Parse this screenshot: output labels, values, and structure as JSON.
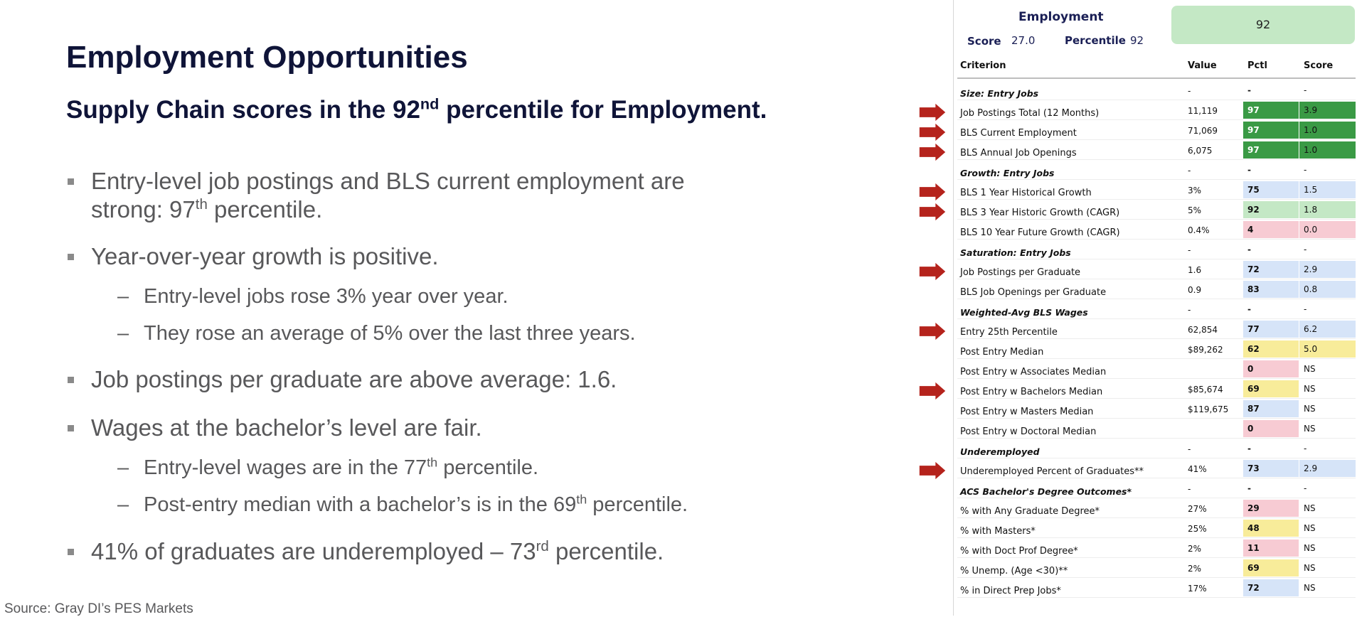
{
  "slide": {
    "title": "Employment Opportunities",
    "subtitle": {
      "pre": "Supply Chain scores in the 92",
      "sup": "nd",
      "post": " percentile for Employment."
    },
    "bullets": [
      {
        "line1": "Entry-level job postings and BLS current employment are",
        "line2_pre": "strong:  97",
        "line2_sup": "th",
        "line2_post": " percentile."
      },
      {
        "text": "Year-over-year growth is positive."
      },
      {
        "text": "Entry-level jobs rose 3% year over year."
      },
      {
        "text": "They rose an average of 5% over the last three years."
      },
      {
        "text": "Job postings per graduate are above average:  1.6."
      },
      {
        "text": "Wages at the bachelor’s level are fair."
      },
      {
        "pre": "Entry-level wages are in the 77",
        "sup": "th",
        "post": " percentile."
      },
      {
        "pre": "Post-entry median with a bachelor’s is in the 69",
        "sup": "th",
        "post": " percentile."
      },
      {
        "pre": "41% of graduates are underemployed – 73",
        "sup": "rd",
        "post": " percentile."
      }
    ],
    "sub_dash": "–",
    "source": "Source: Gray DI’s PES Markets"
  },
  "panel": {
    "title": "Employment",
    "score_label": "Score",
    "score_value": "27.0",
    "percentile_label": "Percentile",
    "percentile_value": "92",
    "badge_value": "92",
    "headers": {
      "criterion": "Criterion",
      "value": "Value",
      "pctl": "Pctl",
      "score": "Score"
    },
    "dash": "-",
    "colors": {
      "dark_green": "#3a9a45",
      "light_green": "#c4e8c5",
      "light_blue": "#d6e4f8",
      "pink": "#f7cbd3",
      "yellow": "#f8ec9a",
      "arrow_red": "#b5231c"
    },
    "rows": [
      {
        "criterion": "Size: Entry Jobs",
        "section": true
      },
      {
        "criterion": "Job Postings Total (12 Months)",
        "value": "11,119",
        "pctl": "97",
        "pctl_color": "dark_green",
        "score": "3.9",
        "score_color": "dark_green",
        "arrow": true
      },
      {
        "criterion": "BLS Current Employment",
        "value": "71,069",
        "pctl": "97",
        "pctl_color": "dark_green",
        "score": "1.0",
        "score_color": "dark_green",
        "arrow": true
      },
      {
        "criterion": "BLS Annual Job Openings",
        "value": "6,075",
        "pctl": "97",
        "pctl_color": "dark_green",
        "score": "1.0",
        "score_color": "dark_green",
        "arrow": true
      },
      {
        "criterion": "Growth: Entry Jobs",
        "section": true
      },
      {
        "criterion": "BLS 1 Year Historical Growth",
        "value": "3%",
        "pctl": "75",
        "pctl_color": "light_blue",
        "score": "1.5",
        "score_color": "light_blue",
        "arrow": true
      },
      {
        "criterion": "BLS 3 Year Historic Growth (CAGR)",
        "value": "5%",
        "pctl": "92",
        "pctl_color": "light_green",
        "score": "1.8",
        "score_color": "light_green",
        "arrow": true
      },
      {
        "criterion": "BLS 10 Year Future Growth (CAGR)",
        "value": "0.4%",
        "pctl": "4",
        "pctl_color": "pink",
        "score": "0.0",
        "score_color": "pink"
      },
      {
        "criterion": "Saturation: Entry Jobs",
        "section": true
      },
      {
        "criterion": "Job Postings per Graduate",
        "value": "1.6",
        "pctl": "72",
        "pctl_color": "light_blue",
        "score": "2.9",
        "score_color": "light_blue",
        "arrow": true
      },
      {
        "criterion": "BLS Job Openings per Graduate",
        "value": "0.9",
        "pctl": "83",
        "pctl_color": "light_blue",
        "score": "0.8",
        "score_color": "light_blue"
      },
      {
        "criterion": "Weighted-Avg BLS Wages",
        "section": true
      },
      {
        "criterion": "Entry 25th Percentile",
        "value": "62,854",
        "pctl": "77",
        "pctl_color": "light_blue",
        "score": "6.2",
        "score_color": "light_blue",
        "arrow": true
      },
      {
        "criterion": "Post Entry Median",
        "value": "$89,262",
        "pctl": "62",
        "pctl_color": "yellow",
        "score": "5.0",
        "score_color": "yellow"
      },
      {
        "criterion": "Post Entry w Associates Median",
        "value": "",
        "pctl": "0",
        "pctl_color": "pink",
        "score": "NS"
      },
      {
        "criterion": "Post Entry w Bachelors Median",
        "value": "$85,674",
        "pctl": "69",
        "pctl_color": "yellow",
        "score": "NS",
        "arrow": true
      },
      {
        "criterion": "Post Entry w Masters Median",
        "value": "$119,675",
        "pctl": "87",
        "pctl_color": "light_blue",
        "score": "NS"
      },
      {
        "criterion": "Post Entry w Doctoral Median",
        "value": "",
        "pctl": "0",
        "pctl_color": "pink",
        "score": "NS"
      },
      {
        "criterion": "Underemployed",
        "section": true
      },
      {
        "criterion": "Underemployed Percent of Graduates**",
        "value": "41%",
        "pctl": "73",
        "pctl_color": "light_blue",
        "score": "2.9",
        "score_color": "light_blue",
        "arrow": true
      },
      {
        "criterion": "ACS Bachelor's Degree Outcomes*",
        "section": true
      },
      {
        "criterion": "% with Any Graduate Degree*",
        "value": "27%",
        "pctl": "29",
        "pctl_color": "pink",
        "score": "NS"
      },
      {
        "criterion": "% with Masters*",
        "value": "25%",
        "pctl": "48",
        "pctl_color": "yellow",
        "score": "NS"
      },
      {
        "criterion": "% with Doct Prof Degree*",
        "value": "2%",
        "pctl": "11",
        "pctl_color": "pink",
        "score": "NS"
      },
      {
        "criterion": "% Unemp. (Age <30)**",
        "value": "2%",
        "pctl": "69",
        "pctl_color": "yellow",
        "score": "NS"
      },
      {
        "criterion": "% in Direct Prep Jobs*",
        "value": "17%",
        "pctl": "72",
        "pctl_color": "light_blue",
        "score": "NS"
      }
    ]
  }
}
